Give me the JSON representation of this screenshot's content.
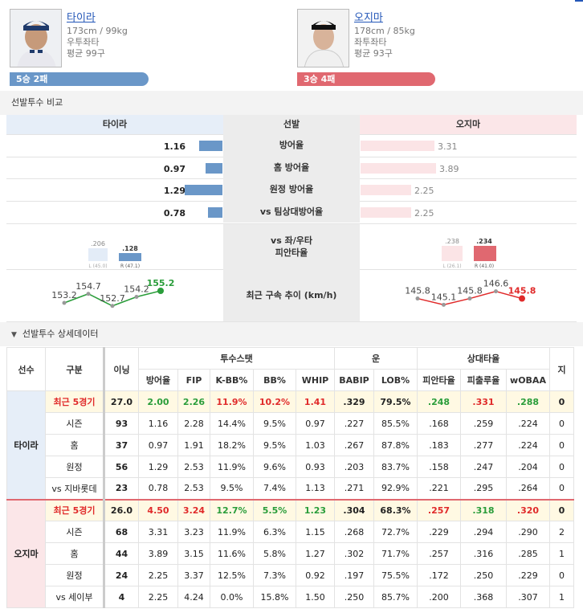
{
  "top_link": "",
  "home": {
    "name": "타이라",
    "body": "173cm / 99kg",
    "hand": "우투좌타",
    "avg_pitch": "평균 99구",
    "record": "5승 2패",
    "color": "#6a97c8"
  },
  "away": {
    "name": "오지마",
    "body": "178cm / 85kg",
    "hand": "좌투좌타",
    "avg_pitch": "평균 93구",
    "record": "3승 4패",
    "color": "#e06870"
  },
  "compare": {
    "title": "선발투수 비교",
    "col_home": "타이라",
    "col_mid": "선발",
    "col_away": "오지마",
    "rows": [
      {
        "label": "방어율",
        "home": "1.16",
        "away": "3.31",
        "home_frac": 0.35,
        "away_frac": 0.98
      },
      {
        "label": "홈 방어율",
        "home": "0.97",
        "away": "3.89",
        "home_frac": 0.25,
        "away_frac": 1.0
      },
      {
        "label": "원정 방어율",
        "home": "1.29",
        "away": "2.25",
        "home_frac": 0.57,
        "away_frac": 0.67
      },
      {
        "label": "vs 팀상대방어율",
        "home": "0.78",
        "away": "2.25",
        "home_frac": 0.22,
        "away_frac": 0.67
      }
    ],
    "split_label_1": "vs 좌/우타",
    "split_label_2": "피안타율",
    "home_split": {
      "L_val": ".206",
      "L_cap": "L (45.0)",
      "R_val": ".128",
      "R_cap": "R (47.1)"
    },
    "away_split": {
      "L_val": ".238",
      "L_cap": "L (26.1)",
      "R_val": ".234",
      "R_cap": "R (41.0)"
    },
    "velo_label": "최근 구속 추이 (km/h)",
    "home_velo": [
      "153.2",
      "154.7",
      "152.7",
      "154.2",
      "155.2"
    ],
    "away_velo": [
      "145.8",
      "145.1",
      "145.8",
      "146.6",
      "145.8"
    ]
  },
  "detail": {
    "title": "선발투수 상세데이터",
    "head1": {
      "player": "선수",
      "cat": "구분",
      "inn": "이닝",
      "pitch": "투수스탯",
      "luck": "운",
      "opp": "상대타율",
      "extra": "지"
    },
    "cols": [
      "방어율",
      "FIP",
      "K-BB%",
      "BB%",
      "WHIP",
      "BABIP",
      "LOB%",
      "피안타율",
      "피출루율",
      "wOBAA",
      "지"
    ],
    "home_player": "타이라",
    "away_player": "오지마",
    "home_rows": [
      {
        "cat": "최근 5경기",
        "inn": "27.0",
        "v": [
          "2.00",
          "2.26",
          "11.9%",
          "10.2%",
          "1.41",
          ".329",
          "79.5%",
          ".248",
          ".331",
          ".288",
          "0"
        ]
      },
      {
        "cat": "시즌",
        "inn": "93",
        "v": [
          "1.16",
          "2.28",
          "14.4%",
          "9.5%",
          "0.97",
          ".227",
          "85.5%",
          ".168",
          ".259",
          ".224",
          "0"
        ]
      },
      {
        "cat": "홈",
        "inn": "37",
        "v": [
          "0.97",
          "1.91",
          "18.2%",
          "9.5%",
          "1.03",
          ".267",
          "87.8%",
          ".183",
          ".277",
          ".224",
          "0"
        ]
      },
      {
        "cat": "원정",
        "inn": "56",
        "v": [
          "1.29",
          "2.53",
          "11.9%",
          "9.6%",
          "0.93",
          ".203",
          "83.7%",
          ".158",
          ".247",
          ".204",
          "0"
        ]
      },
      {
        "cat": "vs 지바롯데",
        "inn": "23",
        "v": [
          "0.78",
          "2.53",
          "9.5%",
          "7.4%",
          "1.13",
          ".271",
          "92.9%",
          ".221",
          ".295",
          ".264",
          "0"
        ]
      }
    ],
    "away_rows": [
      {
        "cat": "최근 5경기",
        "inn": "26.0",
        "v": [
          "4.50",
          "3.24",
          "12.7%",
          "5.5%",
          "1.23",
          ".304",
          "68.3%",
          ".257",
          ".318",
          ".320",
          "0"
        ]
      },
      {
        "cat": "시즌",
        "inn": "68",
        "v": [
          "3.31",
          "3.23",
          "11.9%",
          "6.3%",
          "1.15",
          ".268",
          "72.7%",
          ".229",
          ".294",
          ".290",
          "2"
        ]
      },
      {
        "cat": "홈",
        "inn": "44",
        "v": [
          "3.89",
          "3.15",
          "11.6%",
          "5.8%",
          "1.27",
          ".302",
          "71.7%",
          ".257",
          ".316",
          ".285",
          "1"
        ]
      },
      {
        "cat": "원정",
        "inn": "24",
        "v": [
          "2.25",
          "3.37",
          "12.5%",
          "7.3%",
          "0.92",
          ".197",
          "75.5%",
          ".172",
          ".250",
          ".229",
          "0"
        ]
      },
      {
        "cat": "vs 세이부",
        "inn": "4",
        "v": [
          "2.25",
          "4.24",
          "0.0%",
          "15.8%",
          "1.50",
          ".250",
          "85.7%",
          ".200",
          ".368",
          ".307",
          "1"
        ]
      }
    ],
    "home_hl_colors": [
      "k",
      "g",
      "g",
      "r",
      "r",
      "r",
      "k",
      "k",
      "g",
      "r",
      "g",
      "k"
    ],
    "away_hl_colors": [
      "k",
      "r",
      "r",
      "g",
      "g",
      "g",
      "k",
      "k",
      "r",
      "g",
      "r",
      "k"
    ]
  }
}
